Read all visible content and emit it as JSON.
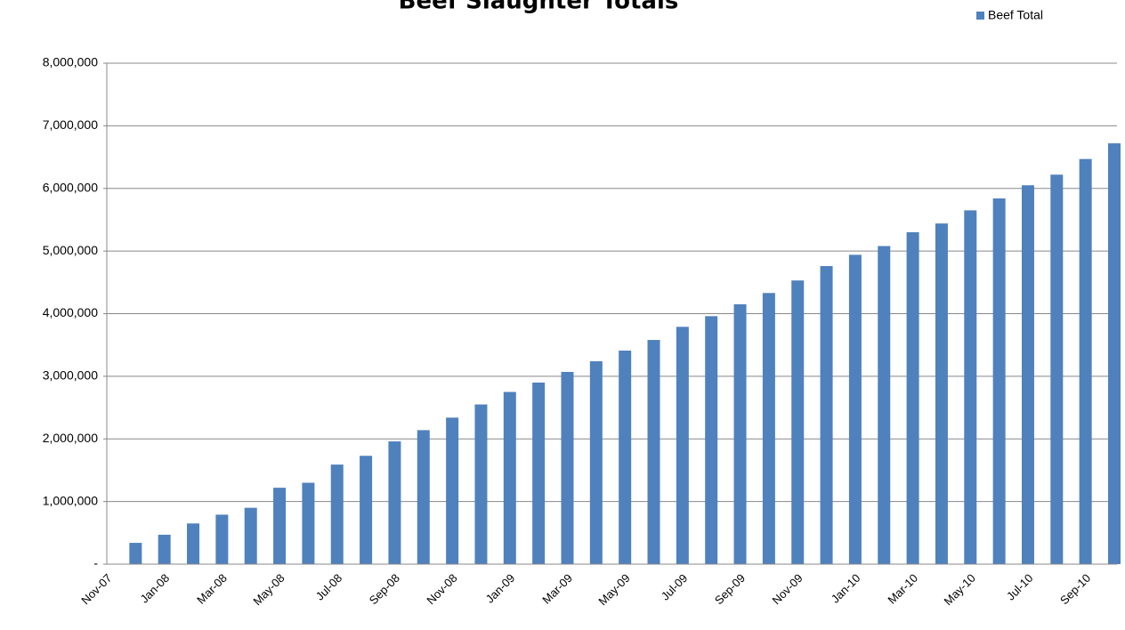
{
  "chart_data": {
    "type": "bar",
    "title": "Beef Slaughter Totals",
    "categories": [
      "Nov-07",
      null,
      "Jan-08",
      null,
      "Mar-08",
      null,
      "May-08",
      null,
      "Jul-08",
      null,
      "Sep-08",
      null,
      "Nov-08",
      null,
      "Jan-09",
      null,
      "Mar-09",
      null,
      "May-09",
      null,
      "Jul-09",
      null,
      "Sep-09",
      null,
      "Nov-09",
      null,
      "Jan-10",
      null,
      "Mar-10",
      null,
      "May-10",
      null,
      "Jul-10",
      null,
      "Sep-10",
      null
    ],
    "series": [
      {
        "name": "Beef Total",
        "color": "#4f81bd",
        "values": [
          null,
          340000,
          470000,
          650000,
          790000,
          900000,
          1220000,
          1300000,
          1590000,
          1730000,
          1960000,
          2140000,
          2340000,
          2550000,
          2750000,
          2900000,
          3070000,
          3240000,
          3410000,
          3580000,
          3790000,
          3960000,
          4150000,
          4330000,
          4530000,
          4760000,
          4940000,
          5080000,
          5300000,
          5440000,
          5650000,
          5840000,
          6050000,
          6220000,
          6470000,
          6720000
        ]
      }
    ],
    "ylim": [
      0,
      8000000
    ],
    "yticks": [
      {
        "value": 0,
        "label": "-"
      },
      {
        "value": 1000000,
        "label": "1,000,000"
      },
      {
        "value": 2000000,
        "label": "2,000,000"
      },
      {
        "value": 3000000,
        "label": "3,000,000"
      },
      {
        "value": 4000000,
        "label": "4,000,000"
      },
      {
        "value": 5000000,
        "label": "5,000,000"
      },
      {
        "value": 6000000,
        "label": "6,000,000"
      },
      {
        "value": 7000000,
        "label": "7,000,000"
      },
      {
        "value": 8000000,
        "label": "8,000,000"
      }
    ],
    "grid": true,
    "legend": "top-right"
  }
}
